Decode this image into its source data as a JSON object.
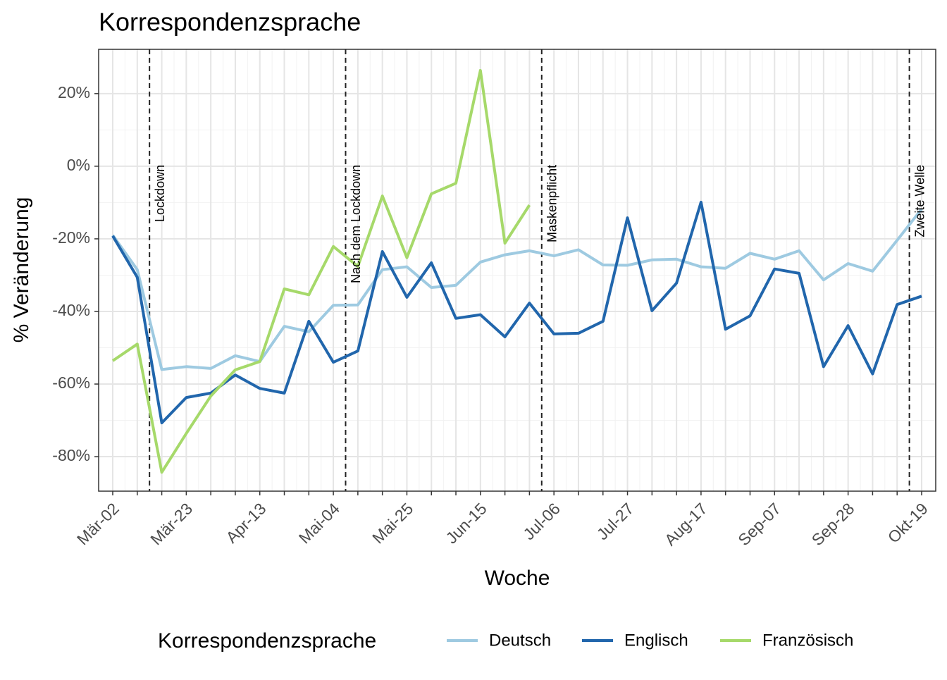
{
  "chart_data": {
    "type": "line",
    "title": "Korrespondenzsprache",
    "xlabel": "Woche",
    "ylabel": "% Veränderung",
    "legend_title": "Korrespondenzsprache",
    "legend": "bottom",
    "grid": true,
    "categories": [
      "Mär-02",
      null,
      null,
      "Mär-23",
      null,
      null,
      "Apr-13",
      null,
      null,
      "Mai-04",
      null,
      null,
      "Mai-25",
      null,
      null,
      "Jun-15",
      null,
      null,
      "Jul-06",
      null,
      null,
      "Jul-27",
      null,
      null,
      "Aug-17",
      null,
      null,
      "Sep-07",
      null,
      null,
      "Sep-28",
      null,
      null,
      "Okt-19"
    ],
    "ylim": [
      -89.5,
      32.2
    ],
    "yticks": [
      {
        "value": -80,
        "label": "-80%"
      },
      {
        "value": -60,
        "label": "-60%"
      },
      {
        "value": -40,
        "label": "-40%"
      },
      {
        "value": -20,
        "label": "-20%"
      },
      {
        "value": 0,
        "label": "0%"
      },
      {
        "value": 20,
        "label": "20%"
      }
    ],
    "annotations": [
      {
        "label": "Lockdown",
        "x": 1.5
      },
      {
        "label": "Nach dem Lockdown",
        "x": 9.5
      },
      {
        "label": "Maskenpflicht",
        "x": 17.5
      },
      {
        "label": "Zweite Welle",
        "x": 32.5
      }
    ],
    "series": [
      {
        "name": "Deutsch",
        "color": "#9ecae1",
        "values": [
          -19,
          -28.5,
          -56,
          -55.2,
          -55.7,
          -52.2,
          -53.8,
          -44.1,
          -45.6,
          -38.3,
          -38.2,
          -28.5,
          -27.7,
          -33.4,
          -32.8,
          -26.4,
          -24.4,
          -23.3,
          -24.7,
          -23,
          -27.2,
          -27.3,
          -25.8,
          -25.6,
          -27.7,
          -28.1,
          -24,
          -25.6,
          -23.3,
          -31.3,
          -26.8,
          -28.9,
          -20.4,
          -11.8
        ]
      },
      {
        "name": "Englisch",
        "color": "#2166ac",
        "values": [
          -19.2,
          -30.6,
          -70.7,
          -63.7,
          -62.5,
          -57.5,
          -61.2,
          -62.5,
          -42.7,
          -54,
          -50.9,
          -23.5,
          -36.1,
          -26.6,
          -41.9,
          -40.9,
          -47,
          -37.7,
          -46.2,
          -46,
          -42.7,
          -14.2,
          -39.8,
          -32.2,
          -9.9,
          -44.9,
          -41.2,
          -28.3,
          -29.5,
          -55.2,
          -43.9,
          -57.2,
          -38.1,
          -35.8
        ]
      },
      {
        "name": "Französisch",
        "color": "#a6d96a",
        "values": [
          -53.6,
          -49,
          -84.3,
          -73.6,
          -63.3,
          -56.1,
          -53.8,
          -33.8,
          -35.4,
          -22.1,
          -27.6,
          -8.2,
          -25.2,
          -7.6,
          -4.7,
          26.4,
          -21.2,
          -10.7,
          null,
          null,
          null,
          null,
          null,
          null,
          null,
          null,
          null,
          null,
          null,
          null,
          null,
          null,
          null,
          null
        ]
      }
    ]
  }
}
